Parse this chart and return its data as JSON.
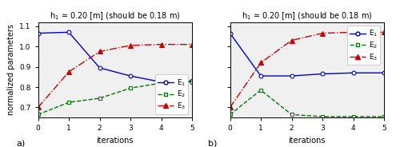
{
  "title": "h$_1$ = 0.20 [m] (should be 0.18 m)",
  "xlabel": "iterations",
  "ylabel": "normalized parameters",
  "xlim": [
    0,
    5
  ],
  "ylim": [
    0.65,
    1.12
  ],
  "yticks": [
    0.7,
    0.8,
    0.9,
    1.0,
    1.1
  ],
  "xticks": [
    0,
    1,
    2,
    3,
    4,
    5
  ],
  "panel_a": {
    "E1": [
      1.065,
      1.07,
      0.895,
      0.855,
      0.825,
      0.83
    ],
    "E2": [
      0.665,
      0.725,
      0.745,
      0.795,
      0.82,
      0.825
    ],
    "E3": [
      0.7,
      0.875,
      0.975,
      1.005,
      1.01,
      1.01
    ]
  },
  "panel_b": {
    "E1": [
      1.065,
      0.855,
      0.855,
      0.865,
      0.87,
      0.87
    ],
    "E2": [
      0.665,
      0.785,
      0.665,
      0.655,
      0.655,
      0.655
    ],
    "E3": [
      0.7,
      0.92,
      1.03,
      1.065,
      1.07,
      1.07
    ]
  },
  "E1_color": "#0000cc",
  "E2_color": "#007700",
  "E3_color": "#cc0000",
  "axes_facecolor": "#f0f0f0",
  "fig_facecolor": "#ffffff",
  "label_a": "a)",
  "label_b": "b)",
  "legend_labels": [
    "E$_1$",
    "E$_2$",
    "E$_3$"
  ],
  "legend_pos_a": "lower right",
  "legend_pos_b": "upper right"
}
